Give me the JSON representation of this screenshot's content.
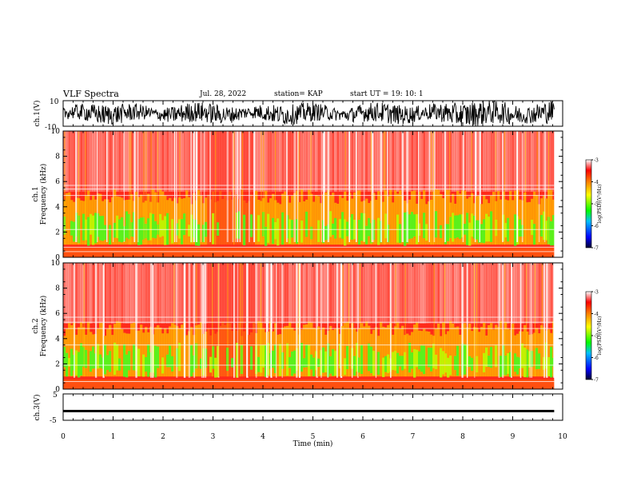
{
  "header": {
    "title": "VLF Spectra",
    "date": "Jul. 28, 2022",
    "station": "station= KAP",
    "start": "start  UT =   19: 10: 1"
  },
  "chart_data": [
    {
      "type": "line",
      "panel": "ch1-waveform",
      "ylabel": "ch.1(V)",
      "ylim": [
        -10,
        10
      ],
      "yticks": [
        "10",
        "-10"
      ],
      "x_range_min": [
        0,
        9.83
      ],
      "description_values": {
        "typical_min": -10,
        "typical_max": 10
      }
    },
    {
      "type": "heatmap",
      "panel": "ch1-spectrogram",
      "ylabel_top": "ch.1",
      "ylabel": "Frequency (kHz)",
      "ylim": [
        0,
        10
      ],
      "yticks": [
        "0",
        "2",
        "4",
        "6",
        "8",
        "10"
      ],
      "colorbar": {
        "label": "log(PSD)(V²/Hz)",
        "ticks": [
          "-3",
          "-4",
          "-5",
          "-6",
          "-7"
        ],
        "range": [
          -7,
          -3
        ]
      }
    },
    {
      "type": "heatmap",
      "panel": "ch2-spectrogram",
      "ylabel_top": "ch.2",
      "ylabel": "Frequency (kHz)",
      "ylim": [
        0,
        10
      ],
      "yticks": [
        "0",
        "2",
        "4",
        "6",
        "8",
        "10"
      ],
      "colorbar": {
        "label": "log(PSD)(V²/Hz)",
        "ticks": [
          "-3",
          "-4",
          "-5",
          "-6",
          "-7"
        ],
        "range": [
          -7,
          -3
        ]
      }
    },
    {
      "type": "line",
      "panel": "ch3-waveform",
      "ylabel": "ch.3(V)",
      "ylim": [
        -5,
        5
      ],
      "yticks": [
        "5",
        "-5"
      ],
      "level": -1.5
    }
  ],
  "xaxis": {
    "label": "Time (min)",
    "ticks": [
      "0",
      "1",
      "2",
      "3",
      "4",
      "5",
      "6",
      "7",
      "8",
      "9",
      "10"
    ],
    "range": [
      0,
      10
    ],
    "data_end": 9.83
  },
  "colors": {
    "ink": "#000000",
    "colormap": [
      "#00008b",
      "#0000ff",
      "#00c8c8",
      "#00ff00",
      "#ffff00",
      "#ff8800",
      "#ff0000",
      "#ffffff"
    ]
  }
}
